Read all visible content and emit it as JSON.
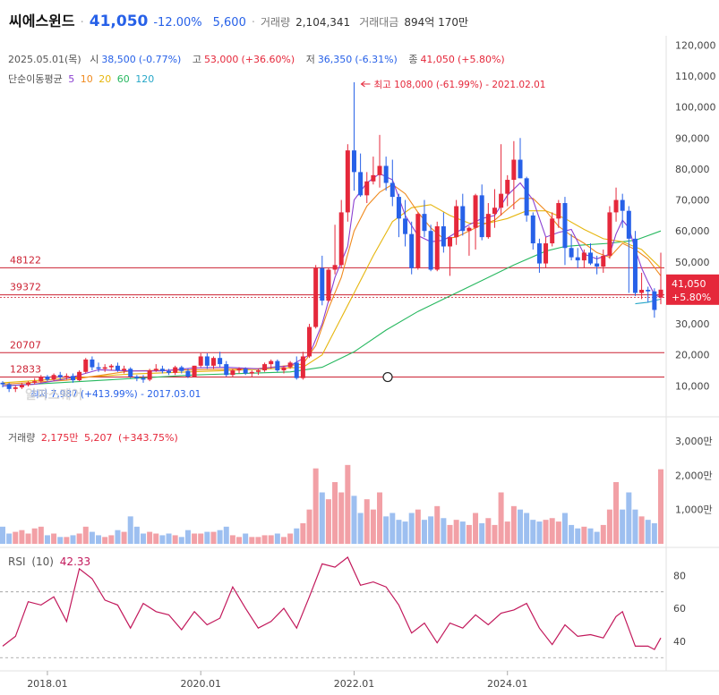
{
  "header": {
    "name": "씨에스윈드",
    "price": "41,050",
    "change_pct": "-12.00%",
    "change_amt": "5,600",
    "volume_label": "거래량",
    "volume": "2,104,341",
    "amount_label": "거래대금",
    "amount": "894억 170만"
  },
  "ohlc_line": {
    "date": "2025.05.01(목)",
    "open_label": "시",
    "open": "38,500",
    "open_pct": "(-0.77%)",
    "high_label": "고",
    "high": "53,000",
    "high_pct": "(+36.60%)",
    "low_label": "저",
    "low": "36,350",
    "low_pct": "(-6.31%)",
    "close_label": "종",
    "close": "41,050",
    "close_pct": "(+5.80%)"
  },
  "ma_legend": {
    "label": "단순이동평균",
    "periods": [
      "5",
      "10",
      "20",
      "60",
      "120"
    ],
    "colors": [
      "#8b3fd1",
      "#f08a1e",
      "#e6b60e",
      "#27b85f",
      "#27a7c8"
    ]
  },
  "max_annotation": "최고 108,000 (-61.99%) - 2021.02.01",
  "min_annotation": "최저 7,987 (+413.99%) - 2017.03.01",
  "watermark": "알파스퀘어",
  "price_lines": [
    "48122",
    "39372",
    "20707",
    "12833"
  ],
  "current_price_tag": {
    "price": "41,050",
    "pct": "+5.80%"
  },
  "volume_legend": {
    "label": "거래량",
    "value1": "2,175만",
    "value2": "5,207",
    "pct": "(+343.75%)"
  },
  "rsi_legend": {
    "label": "RSI",
    "period": "(10)",
    "value": "42.33"
  },
  "colors": {
    "up": "#e5283b",
    "down": "#2761e8",
    "up_vol": "#f2a0a6",
    "down_vol": "#9dbff0"
  },
  "chart_data": {
    "type": "candlestick",
    "interval": "monthly",
    "x_ticks": [
      "2018.01",
      "2020.01",
      "2022.01",
      "2024.01"
    ],
    "y_price_ticks": [
      "120,000",
      "110,000",
      "100,000",
      "90,000",
      "80,000",
      "70,000",
      "60,000",
      "50,000",
      "40,000",
      "30,000",
      "20,000",
      "10,000"
    ],
    "y_price_range": [
      0,
      123000
    ],
    "y_volume_ticks": [
      "3,000만",
      "2,000만",
      "1,000만"
    ],
    "y_volume_range_manwon": [
      0,
      3600
    ],
    "y_rsi_ticks": [
      "80",
      "60",
      "40"
    ],
    "y_rsi_range": [
      22,
      97
    ],
    "rsi_guides": [
      70,
      30
    ],
    "reference_lines": [
      48122,
      39372,
      20707,
      12833
    ],
    "candles": [
      [
        11000,
        11500,
        9500,
        10500,
        500
      ],
      [
        10500,
        11000,
        8000,
        9000,
        300
      ],
      [
        9000,
        10000,
        8000,
        9500,
        350
      ],
      [
        9500,
        11000,
        9000,
        10300,
        400
      ],
      [
        10300,
        11500,
        9800,
        11000,
        300
      ],
      [
        11000,
        12500,
        10500,
        11500,
        450
      ],
      [
        11500,
        13500,
        11000,
        13000,
        500
      ],
      [
        13000,
        13500,
        11500,
        12000,
        250
      ],
      [
        12000,
        14000,
        11500,
        13500,
        300
      ],
      [
        13500,
        14500,
        12000,
        12800,
        200
      ],
      [
        12800,
        14000,
        12000,
        13200,
        200
      ],
      [
        13200,
        14000,
        11000,
        11800,
        250
      ],
      [
        11800,
        15000,
        11500,
        14500,
        300
      ],
      [
        14500,
        19000,
        14000,
        18500,
        500
      ],
      [
        18500,
        19500,
        15000,
        16000,
        350
      ],
      [
        16000,
        17500,
        14500,
        15500,
        250
      ],
      [
        15500,
        17000,
        14500,
        16000,
        200
      ],
      [
        16000,
        17000,
        15000,
        16500,
        250
      ],
      [
        16500,
        17500,
        14500,
        15000,
        400
      ],
      [
        15000,
        16500,
        14000,
        15500,
        350
      ],
      [
        15500,
        16000,
        12500,
        13000,
        800
      ],
      [
        13000,
        13500,
        11500,
        12500,
        500
      ],
      [
        12500,
        13500,
        11000,
        12000,
        300
      ],
      [
        12000,
        15500,
        11500,
        15000,
        350
      ],
      [
        15000,
        17000,
        14500,
        15500,
        300
      ],
      [
        15500,
        16500,
        14000,
        14800,
        250
      ],
      [
        14800,
        15500,
        13500,
        14200,
        300
      ],
      [
        14200,
        16500,
        13500,
        16000,
        250
      ],
      [
        16000,
        16500,
        14000,
        14800,
        200
      ],
      [
        14800,
        15500,
        12500,
        13000,
        400
      ],
      [
        13000,
        16500,
        12800,
        16500,
        300
      ],
      [
        16500,
        20500,
        16000,
        19500,
        300
      ],
      [
        19500,
        20500,
        15500,
        16500,
        350
      ],
      [
        16500,
        19500,
        15500,
        19000,
        350
      ],
      [
        19000,
        21000,
        16000,
        17000,
        400
      ],
      [
        17000,
        18000,
        13000,
        13500,
        500
      ],
      [
        13500,
        15500,
        13000,
        15000,
        250
      ],
      [
        15000,
        16000,
        14000,
        15500,
        200
      ],
      [
        15500,
        16000,
        13500,
        14000,
        300
      ],
      [
        14000,
        15000,
        13000,
        14500,
        200
      ],
      [
        14500,
        15500,
        13500,
        15000,
        200
      ],
      [
        15000,
        17500,
        14500,
        17000,
        250
      ],
      [
        17000,
        18500,
        15500,
        18000,
        250
      ],
      [
        18000,
        18500,
        14500,
        15000,
        300
      ],
      [
        15000,
        16500,
        14000,
        16000,
        200
      ],
      [
        16000,
        18000,
        15500,
        17500,
        300
      ],
      [
        17500,
        19500,
        12000,
        12500,
        450
      ],
      [
        12500,
        21000,
        12000,
        19500,
        600
      ],
      [
        19500,
        30000,
        19000,
        29000,
        1000
      ],
      [
        29000,
        49000,
        28500,
        48000,
        2200
      ],
      [
        48000,
        52000,
        36000,
        37500,
        1500
      ],
      [
        37500,
        48000,
        37000,
        47500,
        1300
      ],
      [
        47500,
        62000,
        46000,
        49000,
        1800
      ],
      [
        49000,
        70000,
        48000,
        66000,
        1500
      ],
      [
        66000,
        88000,
        63000,
        86000,
        2300
      ],
      [
        86000,
        108000,
        73000,
        79000,
        1400
      ],
      [
        79000,
        85000,
        71000,
        71500,
        900
      ],
      [
        71500,
        79000,
        69000,
        76000,
        1300
      ],
      [
        76000,
        84000,
        75000,
        78000,
        1000
      ],
      [
        78000,
        91000,
        74000,
        81000,
        1500
      ],
      [
        81000,
        84000,
        73000,
        75500,
        800
      ],
      [
        75500,
        83000,
        68000,
        71000,
        900
      ],
      [
        71000,
        72000,
        58000,
        64000,
        700
      ],
      [
        64000,
        70000,
        55000,
        59000,
        650
      ],
      [
        59000,
        63000,
        46000,
        48000,
        900
      ],
      [
        48000,
        66000,
        47500,
        65500,
        1000
      ],
      [
        65500,
        70000,
        58000,
        60000,
        700
      ],
      [
        60000,
        62000,
        47000,
        47500,
        800
      ],
      [
        47500,
        63000,
        47000,
        61500,
        1100
      ],
      [
        61500,
        66000,
        53000,
        55000,
        750
      ],
      [
        55000,
        58000,
        45500,
        58000,
        550
      ],
      [
        58000,
        70000,
        55500,
        68000,
        700
      ],
      [
        68000,
        72000,
        58500,
        60000,
        650
      ],
      [
        60000,
        61500,
        52000,
        61000,
        550
      ],
      [
        61000,
        72000,
        54000,
        71500,
        900
      ],
      [
        71500,
        75000,
        57000,
        58000,
        600
      ],
      [
        58000,
        69000,
        57500,
        65500,
        750
      ],
      [
        65500,
        73500,
        61000,
        67500,
        550
      ],
      [
        67500,
        88000,
        65000,
        72000,
        1500
      ],
      [
        72000,
        78000,
        68000,
        76500,
        650
      ],
      [
        76500,
        89000,
        67000,
        83000,
        1100
      ],
      [
        83000,
        90000,
        77000,
        77000,
        1000
      ],
      [
        77000,
        77500,
        63000,
        65000,
        900
      ],
      [
        65000,
        66000,
        54000,
        56000,
        700
      ],
      [
        56000,
        57500,
        46500,
        49500,
        650
      ],
      [
        49500,
        58000,
        48000,
        56000,
        700
      ],
      [
        56000,
        66000,
        55000,
        64000,
        750
      ],
      [
        64000,
        70000,
        61000,
        69000,
        650
      ],
      [
        69000,
        71000,
        49000,
        54500,
        900
      ],
      [
        54500,
        59000,
        50500,
        51500,
        550
      ],
      [
        51500,
        54500,
        48000,
        50500,
        450
      ],
      [
        50500,
        54000,
        48000,
        53000,
        500
      ],
      [
        53000,
        56000,
        49000,
        49500,
        450
      ],
      [
        49500,
        52000,
        46000,
        48500,
        350
      ],
      [
        48500,
        54000,
        46500,
        52000,
        550
      ],
      [
        52000,
        68000,
        51000,
        66000,
        1000
      ],
      [
        66000,
        74000,
        63000,
        70000,
        1800
      ],
      [
        70000,
        72000,
        61000,
        66500,
        1000
      ],
      [
        66500,
        68000,
        40000,
        57500,
        1500
      ],
      [
        57500,
        60000,
        39000,
        40000,
        1000
      ],
      [
        40000,
        46500,
        38000,
        41000,
        800
      ],
      [
        41000,
        42000,
        37000,
        40500,
        700
      ],
      [
        40500,
        41500,
        32000,
        34500,
        600
      ],
      [
        38500,
        53000,
        36350,
        41050,
        2175
      ]
    ],
    "ma5": [
      [
        0,
        10000
      ],
      [
        5,
        10500
      ],
      [
        10,
        12300
      ],
      [
        15,
        15200
      ],
      [
        20,
        14800
      ],
      [
        25,
        14800
      ],
      [
        30,
        15800
      ],
      [
        35,
        16000
      ],
      [
        40,
        15500
      ],
      [
        45,
        16500
      ],
      [
        48,
        20000
      ],
      [
        50,
        30000
      ],
      [
        52,
        45000
      ],
      [
        54,
        55000
      ],
      [
        55,
        70000
      ],
      [
        57,
        75500
      ],
      [
        59,
        78500
      ],
      [
        61,
        76500
      ],
      [
        63,
        65000
      ],
      [
        65,
        58500
      ],
      [
        67,
        56500
      ],
      [
        69,
        57000
      ],
      [
        71,
        59500
      ],
      [
        73,
        62000
      ],
      [
        75,
        64000
      ],
      [
        77,
        65000
      ],
      [
        79,
        71500
      ],
      [
        81,
        75500
      ],
      [
        83,
        70000
      ],
      [
        85,
        58000
      ],
      [
        87,
        59500
      ],
      [
        89,
        60500
      ],
      [
        91,
        52500
      ],
      [
        93,
        51000
      ],
      [
        95,
        52500
      ],
      [
        96,
        59000
      ],
      [
        97,
        63500
      ],
      [
        98,
        61000
      ],
      [
        99,
        54000
      ],
      [
        100,
        48000
      ],
      [
        101,
        43500
      ],
      [
        102,
        39500
      ],
      [
        103,
        38500
      ]
    ],
    "ma10": [
      [
        0,
        10500
      ],
      [
        10,
        11800
      ],
      [
        20,
        14800
      ],
      [
        30,
        15200
      ],
      [
        40,
        15600
      ],
      [
        47,
        17000
      ],
      [
        49,
        23000
      ],
      [
        51,
        35000
      ],
      [
        53,
        45000
      ],
      [
        55,
        60000
      ],
      [
        57,
        68000
      ],
      [
        59,
        72500
      ],
      [
        61,
        75000
      ],
      [
        63,
        72000
      ],
      [
        65,
        66000
      ],
      [
        67,
        61000
      ],
      [
        69,
        57500
      ],
      [
        71,
        58000
      ],
      [
        73,
        60000
      ],
      [
        75,
        62000
      ],
      [
        77,
        63500
      ],
      [
        79,
        67000
      ],
      [
        81,
        70500
      ],
      [
        83,
        70500
      ],
      [
        85,
        66500
      ],
      [
        87,
        61500
      ],
      [
        89,
        58500
      ],
      [
        91,
        56000
      ],
      [
        93,
        53000
      ],
      [
        95,
        51500
      ],
      [
        97,
        56000
      ],
      [
        99,
        54000
      ],
      [
        101,
        51000
      ],
      [
        103,
        45500
      ]
    ],
    "ma20": [
      [
        0,
        11000
      ],
      [
        20,
        13800
      ],
      [
        40,
        15300
      ],
      [
        47,
        16000
      ],
      [
        50,
        20000
      ],
      [
        52,
        28000
      ],
      [
        55,
        40000
      ],
      [
        58,
        52000
      ],
      [
        61,
        63000
      ],
      [
        64,
        67500
      ],
      [
        67,
        68500
      ],
      [
        70,
        65000
      ],
      [
        73,
        62500
      ],
      [
        76,
        62500
      ],
      [
        79,
        64000
      ],
      [
        82,
        66500
      ],
      [
        85,
        66500
      ],
      [
        88,
        64000
      ],
      [
        91,
        60500
      ],
      [
        94,
        57500
      ],
      [
        97,
        56500
      ],
      [
        100,
        54000
      ],
      [
        103,
        48000
      ]
    ],
    "ma60": [
      [
        0,
        10000
      ],
      [
        30,
        13500
      ],
      [
        45,
        14500
      ],
      [
        50,
        16000
      ],
      [
        55,
        21000
      ],
      [
        60,
        28000
      ],
      [
        65,
        34000
      ],
      [
        70,
        39000
      ],
      [
        75,
        44000
      ],
      [
        80,
        49000
      ],
      [
        85,
        53500
      ],
      [
        88,
        55000
      ],
      [
        91,
        55500
      ],
      [
        95,
        56000
      ],
      [
        99,
        57000
      ],
      [
        103,
        60000
      ]
    ],
    "ma120": [
      [
        99,
        36500
      ],
      [
        101,
        37000
      ],
      [
        103,
        38000
      ]
    ],
    "rsi": [
      [
        0,
        37
      ],
      [
        2,
        43
      ],
      [
        4,
        64
      ],
      [
        6,
        62
      ],
      [
        8,
        67
      ],
      [
        10,
        52
      ],
      [
        12,
        84
      ],
      [
        14,
        78
      ],
      [
        16,
        65
      ],
      [
        18,
        62
      ],
      [
        20,
        48
      ],
      [
        22,
        63
      ],
      [
        24,
        58
      ],
      [
        26,
        56
      ],
      [
        28,
        47
      ],
      [
        30,
        58
      ],
      [
        32,
        50
      ],
      [
        34,
        54
      ],
      [
        36,
        73
      ],
      [
        38,
        60
      ],
      [
        40,
        48
      ],
      [
        42,
        52
      ],
      [
        44,
        60
      ],
      [
        46,
        48
      ],
      [
        48,
        67
      ],
      [
        50,
        87
      ],
      [
        52,
        85
      ],
      [
        54,
        91
      ],
      [
        56,
        74
      ],
      [
        58,
        76
      ],
      [
        60,
        73
      ],
      [
        62,
        62
      ],
      [
        64,
        45
      ],
      [
        66,
        51
      ],
      [
        68,
        39
      ],
      [
        70,
        51
      ],
      [
        72,
        48
      ],
      [
        74,
        56
      ],
      [
        76,
        50
      ],
      [
        78,
        57
      ],
      [
        80,
        59
      ],
      [
        82,
        63
      ],
      [
        84,
        48
      ],
      [
        86,
        38
      ],
      [
        88,
        50
      ],
      [
        90,
        43
      ],
      [
        92,
        44
      ],
      [
        94,
        42
      ],
      [
        96,
        55
      ],
      [
        97,
        58
      ],
      [
        99,
        37
      ],
      [
        101,
        37
      ],
      [
        102,
        35
      ],
      [
        103,
        42
      ]
    ]
  }
}
